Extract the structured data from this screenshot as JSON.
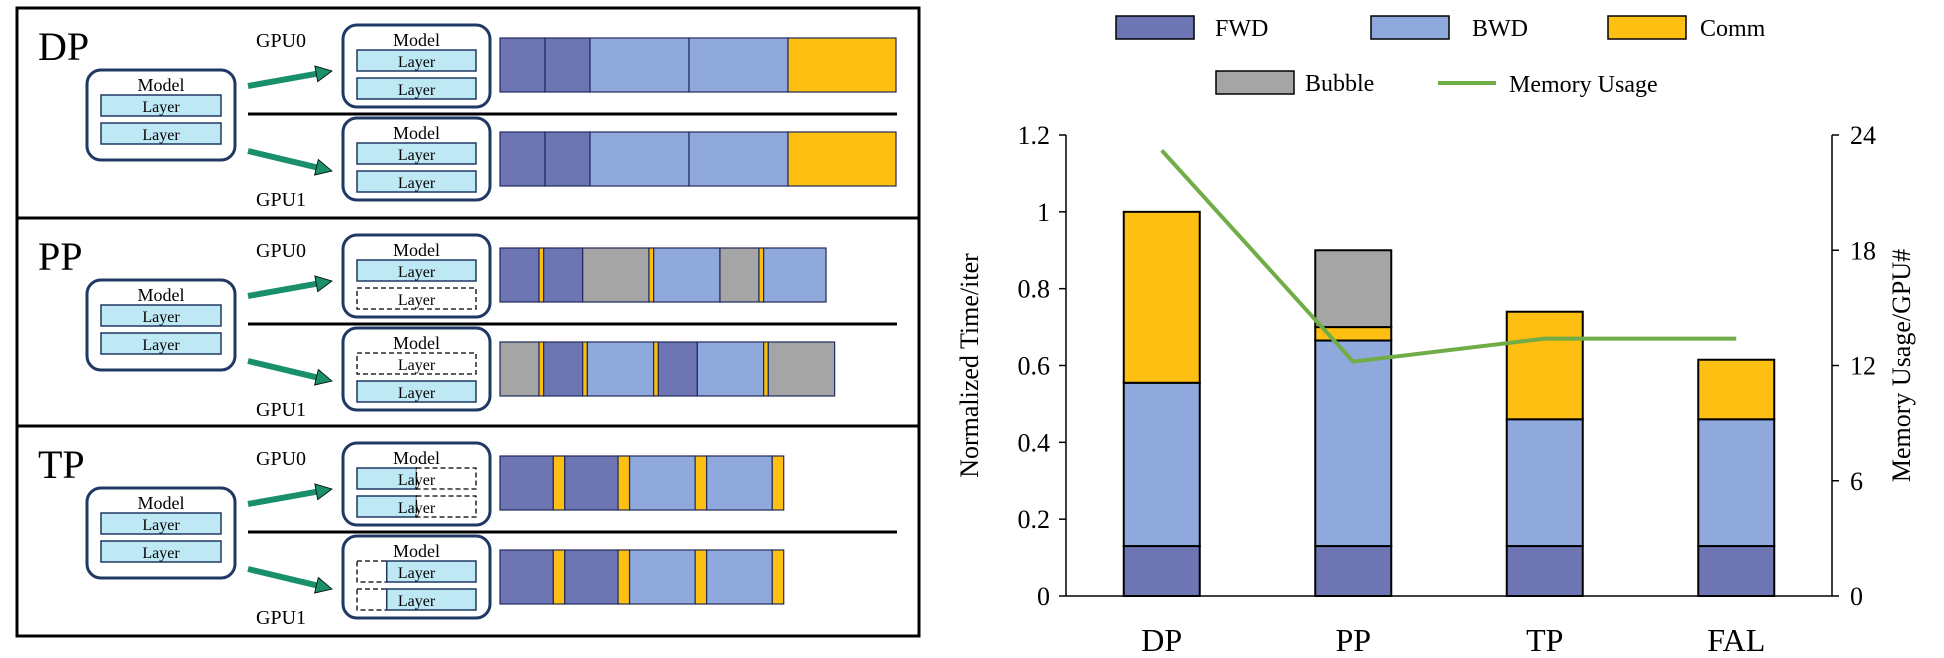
{
  "diagram": {
    "sections": [
      {
        "label": "DP",
        "model": {
          "title": "Model",
          "layers": [
            "Layer",
            "Layer"
          ]
        },
        "gpus": [
          {
            "label": "GPU0",
            "model": {
              "title": "Model",
              "layers": [
                {
                  "text": "Layer",
                  "style": "solid"
                },
                {
                  "text": "Layer",
                  "style": "solid"
                }
              ]
            },
            "timeline": [
              {
                "kind": "fwd",
                "w": 1
              },
              {
                "kind": "fwd",
                "w": 1
              },
              {
                "kind": "bwd",
                "w": 2.2
              },
              {
                "kind": "bwd",
                "w": 2.2
              },
              {
                "kind": "comm",
                "w": 2.4
              }
            ]
          },
          {
            "label": "GPU1",
            "model": {
              "title": "Model",
              "layers": [
                {
                  "text": "Layer",
                  "style": "solid"
                },
                {
                  "text": "Layer",
                  "style": "solid"
                }
              ]
            },
            "timeline": [
              {
                "kind": "fwd",
                "w": 1
              },
              {
                "kind": "fwd",
                "w": 1
              },
              {
                "kind": "bwd",
                "w": 2.2
              },
              {
                "kind": "bwd",
                "w": 2.2
              },
              {
                "kind": "comm",
                "w": 2.4
              }
            ]
          }
        ]
      },
      {
        "label": "PP",
        "model": {
          "title": "Model",
          "layers": [
            "Layer",
            "Layer"
          ]
        },
        "gpus": [
          {
            "label": "GPU0",
            "model": {
              "title": "Model",
              "layers": [
                {
                  "text": "Layer",
                  "style": "solid"
                },
                {
                  "text": "Layer",
                  "style": "dashed"
                }
              ]
            },
            "timeline": [
              {
                "kind": "fwd",
                "w": 1
              },
              {
                "kind": "comm",
                "w": 0.12
              },
              {
                "kind": "fwd",
                "w": 1
              },
              {
                "kind": "bubble",
                "w": 1.7
              },
              {
                "kind": "comm",
                "w": 0.12
              },
              {
                "kind": "bwd",
                "w": 1.7
              },
              {
                "kind": "bubble",
                "w": 1
              },
              {
                "kind": "comm",
                "w": 0.12
              },
              {
                "kind": "bwd",
                "w": 1.6
              }
            ]
          },
          {
            "label": "GPU1",
            "model": {
              "title": "Model",
              "layers": [
                {
                  "text": "Layer",
                  "style": "dashed"
                },
                {
                  "text": "Layer",
                  "style": "solid"
                }
              ]
            },
            "timeline": [
              {
                "kind": "bubble",
                "w": 1
              },
              {
                "kind": "comm",
                "w": 0.12
              },
              {
                "kind": "fwd",
                "w": 1
              },
              {
                "kind": "comm",
                "w": 0.12
              },
              {
                "kind": "bwd",
                "w": 1.7
              },
              {
                "kind": "comm",
                "w": 0.12
              },
              {
                "kind": "fwd",
                "w": 1
              },
              {
                "kind": "bwd",
                "w": 1.7
              },
              {
                "kind": "comm",
                "w": 0.12
              },
              {
                "kind": "bubble",
                "w": 1.7
              }
            ]
          }
        ]
      },
      {
        "label": "TP",
        "model": {
          "title": "Model",
          "layers": [
            "Layer",
            "Layer"
          ]
        },
        "gpus": [
          {
            "label": "GPU0",
            "model": {
              "title": "Model",
              "layers": [
                {
                  "text": "Layer",
                  "style": "half-right"
                },
                {
                  "text": "Layer",
                  "style": "half-right"
                }
              ]
            },
            "timeline": [
              {
                "kind": "fwd",
                "w": 1.3
              },
              {
                "kind": "comm",
                "w": 0.28
              },
              {
                "kind": "fwd",
                "w": 1.3
              },
              {
                "kind": "comm",
                "w": 0.28
              },
              {
                "kind": "bwd",
                "w": 1.6
              },
              {
                "kind": "comm",
                "w": 0.28
              },
              {
                "kind": "bwd",
                "w": 1.6
              },
              {
                "kind": "comm",
                "w": 0.28
              }
            ]
          },
          {
            "label": "GPU1",
            "model": {
              "title": "Model",
              "layers": [
                {
                  "text": "Layer",
                  "style": "half-left"
                },
                {
                  "text": "Layer",
                  "style": "half-left"
                }
              ]
            },
            "timeline": [
              {
                "kind": "fwd",
                "w": 1.3
              },
              {
                "kind": "comm",
                "w": 0.28
              },
              {
                "kind": "fwd",
                "w": 1.3
              },
              {
                "kind": "comm",
                "w": 0.28
              },
              {
                "kind": "bwd",
                "w": 1.6
              },
              {
                "kind": "comm",
                "w": 0.28
              },
              {
                "kind": "bwd",
                "w": 1.6
              },
              {
                "kind": "comm",
                "w": 0.28
              }
            ]
          }
        ]
      }
    ]
  },
  "colors": {
    "fwd": "#6e75b3",
    "bwd": "#8fa9dc",
    "comm": "#fdbf11",
    "bubble": "#a5a5a5",
    "memory": "#70ad47",
    "layer_fill": "#bfe8f5",
    "arrow": "#1a8f6b"
  },
  "chart_data": {
    "type": "bar",
    "stacked": true,
    "categories": [
      "DP",
      "PP",
      "TP",
      "FAL"
    ],
    "series": [
      {
        "name": "FWD",
        "key": "fwd",
        "values": [
          0.13,
          0.13,
          0.13,
          0.13
        ]
      },
      {
        "name": "BWD",
        "key": "bwd",
        "values": [
          0.425,
          0.535,
          0.33,
          0.33
        ]
      },
      {
        "name": "Comm",
        "key": "comm",
        "values": [
          0.445,
          0.035,
          0.28,
          0.155
        ]
      },
      {
        "name": "Bubble",
        "key": "bubble",
        "values": [
          0,
          0.2,
          0,
          0
        ]
      }
    ],
    "line_series": {
      "name": "Memory Usage",
      "key": "memory",
      "axis": "right",
      "values": [
        23.2,
        12.2,
        13.4,
        13.4
      ]
    },
    "ylabel": "Normalized Time/iter",
    "y2label": "Memory Usage/GPU#",
    "ylim": [
      0,
      1.2
    ],
    "yticks": [
      "0",
      "0.2",
      "0.4",
      "0.6",
      "0.8",
      "1",
      "1.2"
    ],
    "y2lim": [
      0,
      24
    ],
    "y2ticks": [
      "0",
      "6",
      "12",
      "18",
      "24"
    ],
    "legend": {
      "placement": "top",
      "items": [
        "FWD",
        "BWD",
        "Comm",
        "Bubble",
        "Memory Usage"
      ]
    },
    "grid": false
  }
}
